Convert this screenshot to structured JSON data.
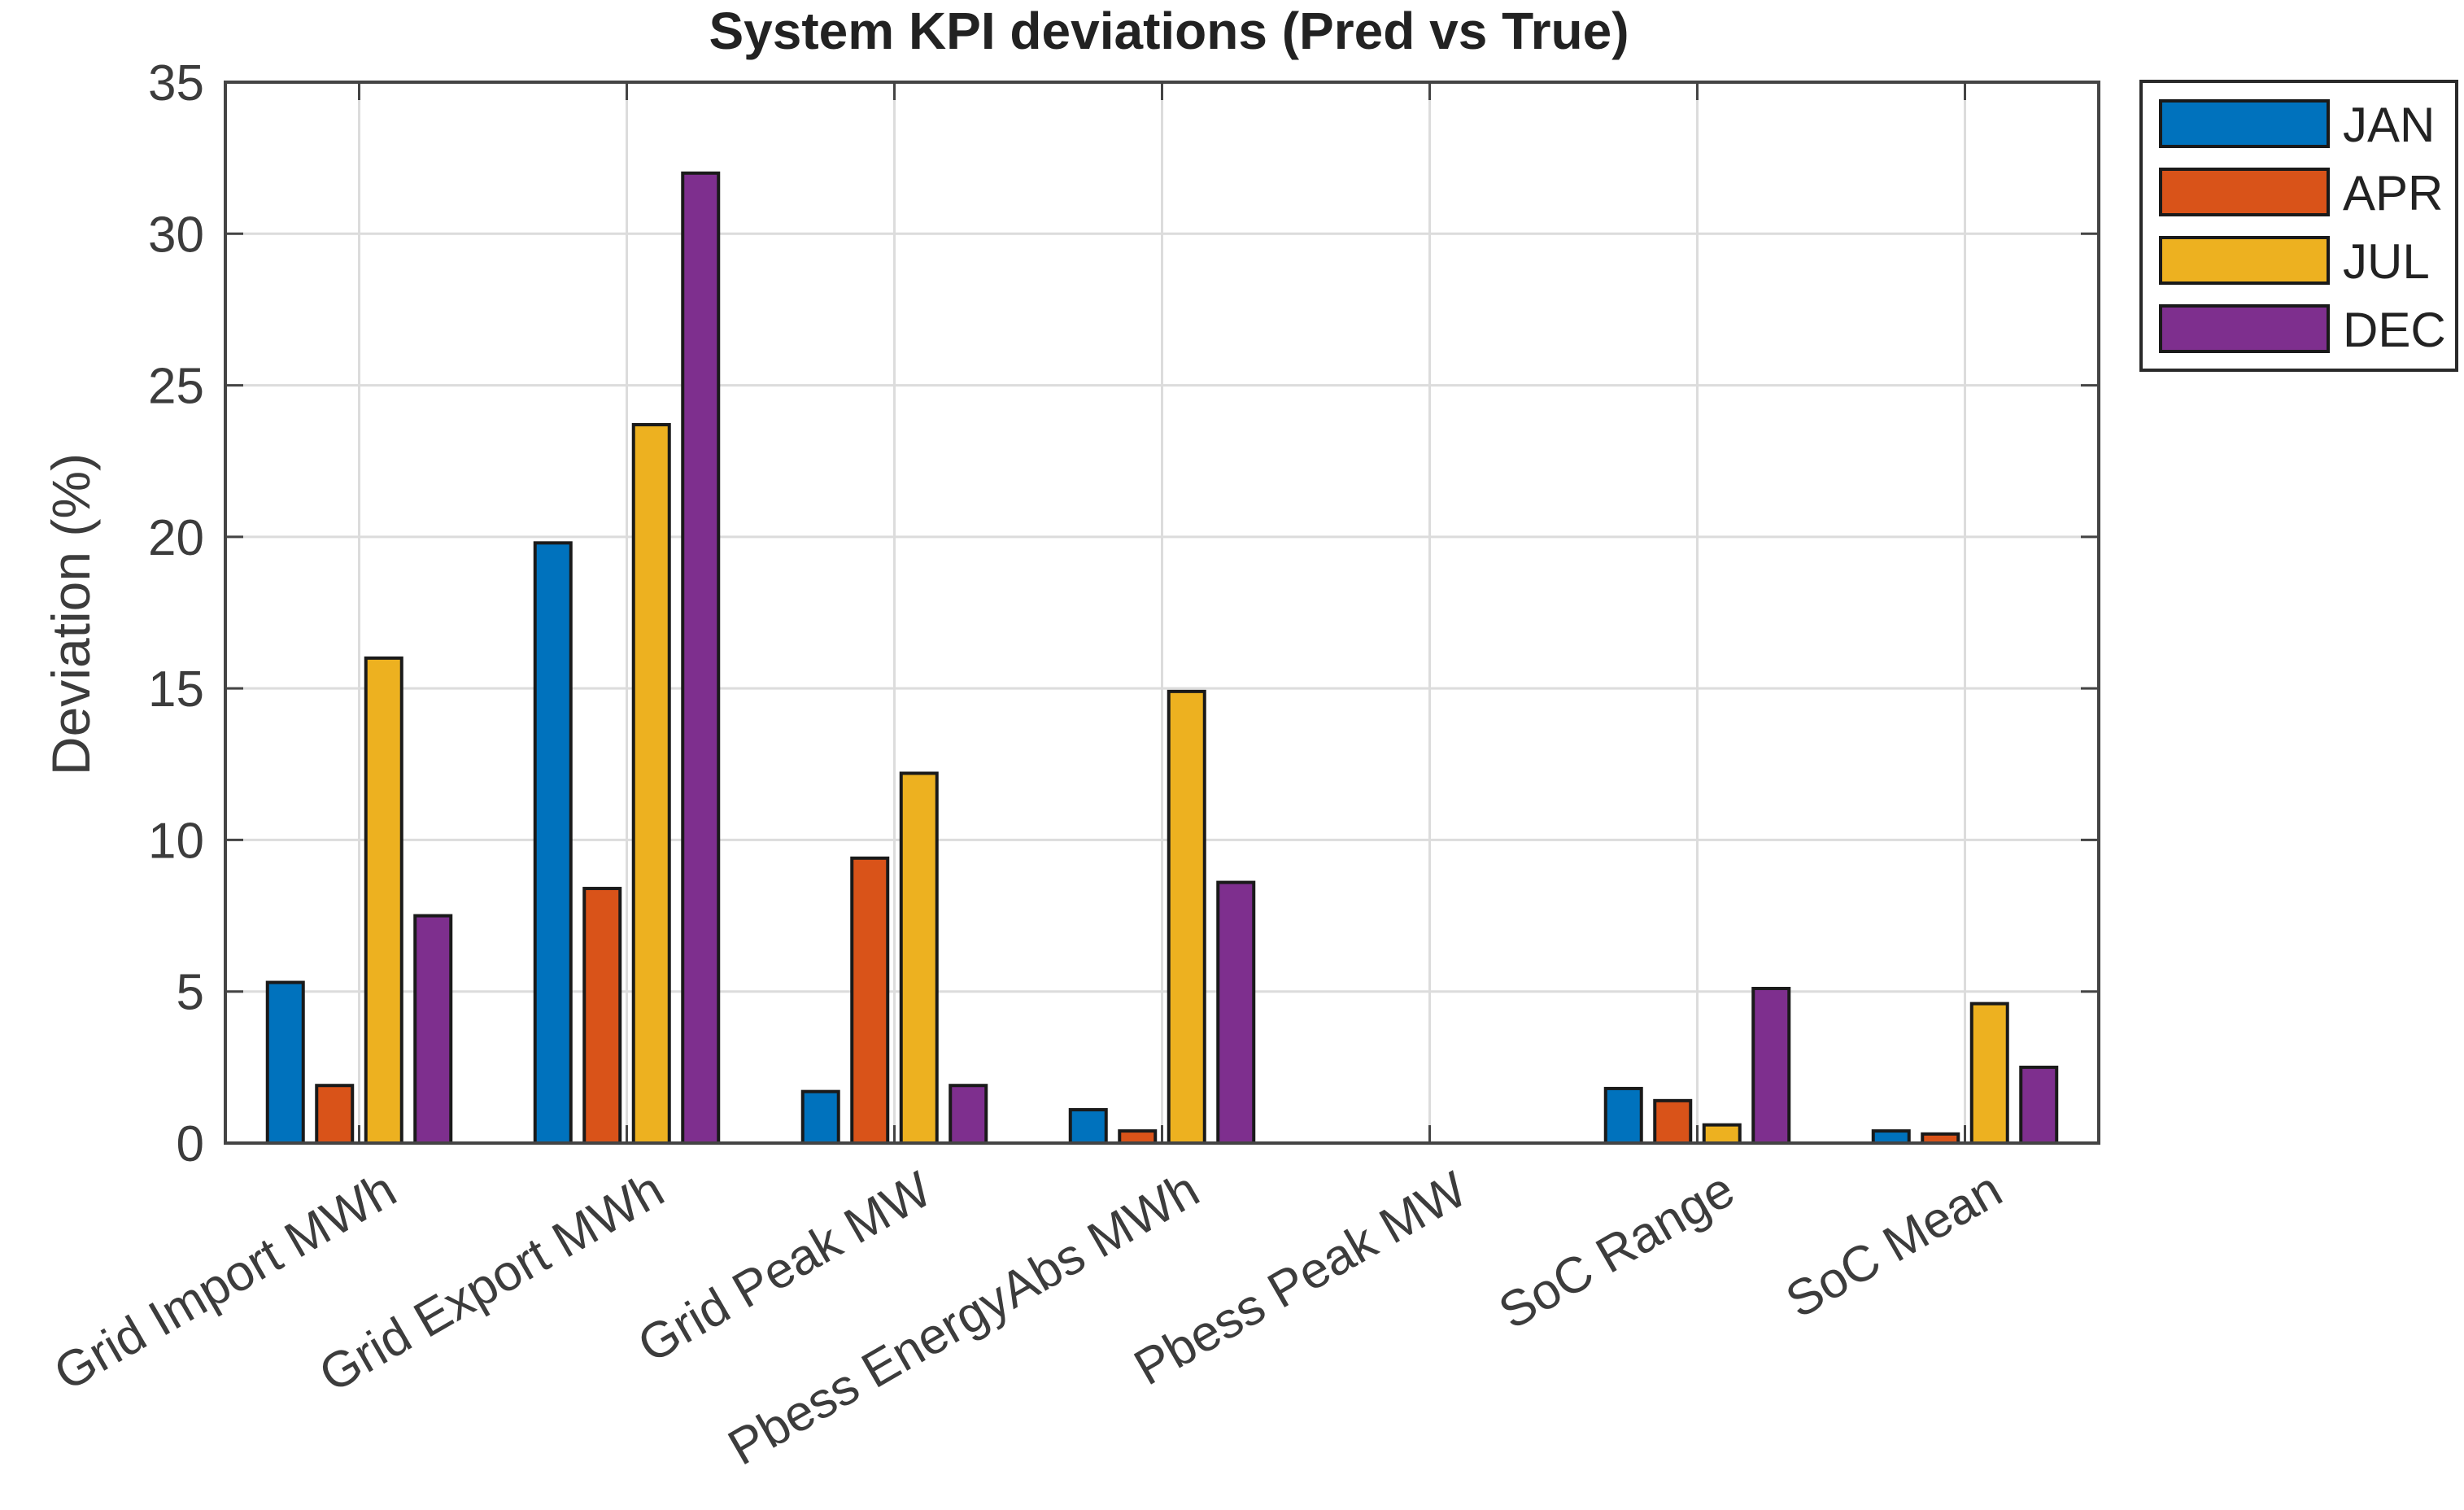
{
  "chart_data": {
    "type": "bar",
    "title": "System KPI deviations (Pred vs True)",
    "xlabel": "",
    "ylabel": "Deviation (%)",
    "ylim": [
      0,
      35
    ],
    "yticks": [
      0,
      5,
      10,
      15,
      20,
      25,
      30,
      35
    ],
    "grid": true,
    "legend_position": "outside-top-right",
    "categories": [
      "Grid Import MWh",
      "Grid Export MWh",
      "Grid Peak MW",
      "Pbess EnergyAbs MWh",
      "Pbess Peak MW",
      "SoC Range",
      "SoC Mean"
    ],
    "series": [
      {
        "name": "JAN",
        "color": "#0072BD",
        "values": [
          5.3,
          19.8,
          1.7,
          1.1,
          0.0,
          1.8,
          0.4
        ]
      },
      {
        "name": "APR",
        "color": "#D95319",
        "values": [
          1.9,
          8.4,
          9.4,
          0.4,
          0.0,
          1.4,
          0.3
        ]
      },
      {
        "name": "JUL",
        "color": "#EDB120",
        "values": [
          16.0,
          23.7,
          12.2,
          14.9,
          0.0,
          0.6,
          4.6
        ]
      },
      {
        "name": "DEC",
        "color": "#7E2F8E",
        "values": [
          7.5,
          32.0,
          1.9,
          8.6,
          0.0,
          5.1,
          2.5
        ]
      }
    ]
  }
}
